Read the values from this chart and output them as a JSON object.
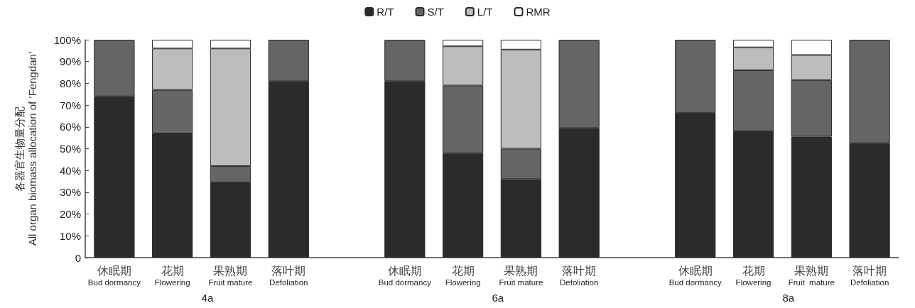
{
  "chart_data": {
    "type": "bar",
    "stacked": true,
    "ylabel": "各器官生物量分配\nAll organ biomass allocation of ‘Fengdan’",
    "categories": [
      "休眠期\nBud dormancy",
      "花期\nFlowering",
      "果熟期\nFruit mature",
      "落叶期\nDefoliation",
      null,
      "休眠期\nBud dormancy",
      "花期\nFlowering",
      "果熟期\nFruit mature",
      "落叶期\nDefoliation",
      null,
      "休眠期\nBud dormancy",
      "花期\nFlowering",
      "果熟期\nFruit  mature",
      "落叶期\nDefoliation"
    ],
    "series": [
      {
        "name": "R/T",
        "color": "#2b2b2b",
        "values": [
          74,
          57,
          34.5,
          81,
          null,
          81,
          48,
          36,
          59.5,
          null,
          66.5,
          58,
          55.5,
          52.5
        ]
      },
      {
        "name": "S/T",
        "color": "#656565",
        "values": [
          26,
          20,
          7.5,
          19,
          null,
          19,
          31,
          14,
          40.5,
          null,
          33.5,
          28,
          26,
          47.5
        ]
      },
      {
        "name": "L/T",
        "color": "#bdbdbd",
        "values": [
          null,
          19,
          54,
          null,
          null,
          null,
          18,
          45.5,
          null,
          null,
          null,
          10.5,
          11.5,
          null
        ]
      },
      {
        "name": "RMR",
        "color": "#ffffff",
        "values": [
          null,
          4,
          4,
          null,
          null,
          null,
          3,
          4.5,
          null,
          null,
          null,
          3.5,
          7,
          null
        ]
      }
    ],
    "ylim": [
      0,
      100
    ],
    "yticks": [
      0,
      {
        "value": 10,
        "label": "10%"
      },
      {
        "value": 20,
        "label": "20%"
      },
      {
        "value": 30,
        "label": "30%"
      },
      {
        "value": 40,
        "label": "40%"
      },
      {
        "value": 50,
        "label": "50%"
      },
      {
        "value": 60,
        "label": "60%"
      },
      {
        "value": 70,
        "label": "70%"
      },
      {
        "value": 80,
        "label": "80%"
      },
      {
        "value": 90,
        "label": "90%"
      },
      {
        "value": 100,
        "label": "100%"
      }
    ],
    "legend": "top",
    "annotations": [
      "4a",
      "6a",
      "8a"
    ]
  }
}
